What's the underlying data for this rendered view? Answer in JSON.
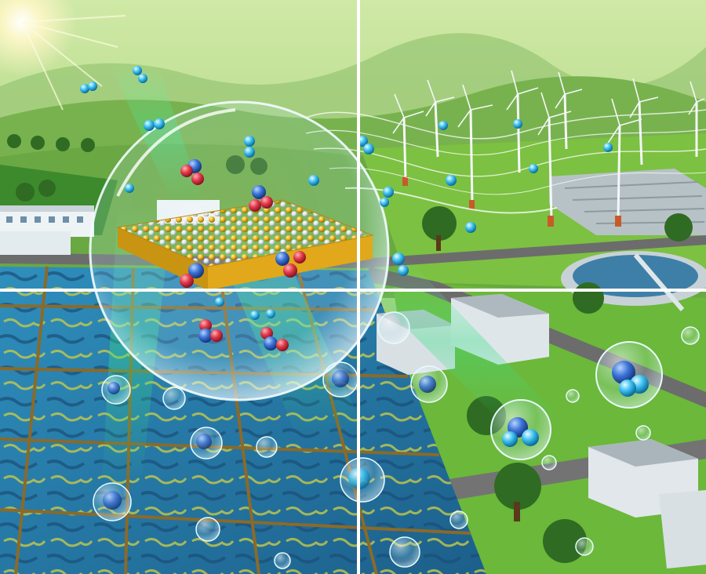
{
  "image": {
    "kind": "illustration",
    "layout": "four-panel grid",
    "colors": {
      "sky": "#b9dc8a",
      "hills_far": "#8fc36a",
      "hills_near": "#5f9e3f",
      "field": "#7cc142",
      "pond_water": "#2a7fa8",
      "pond_algae": "#c6c84a",
      "pond_border": "#8a6a2a",
      "road": "#6c6c6c",
      "bubble_edge": "#e9fbff",
      "gold_atom": "#f2b51f",
      "silver_atom": "#e8eef2",
      "red_atom": "#e23b4a",
      "blue_atom": "#3c74d8",
      "white_divider": "#ffffff"
    },
    "icons": [
      "sun-icon",
      "wind-turbine-icon",
      "building-icon",
      "tree-icon",
      "molecule-icon",
      "bubble-icon"
    ]
  }
}
